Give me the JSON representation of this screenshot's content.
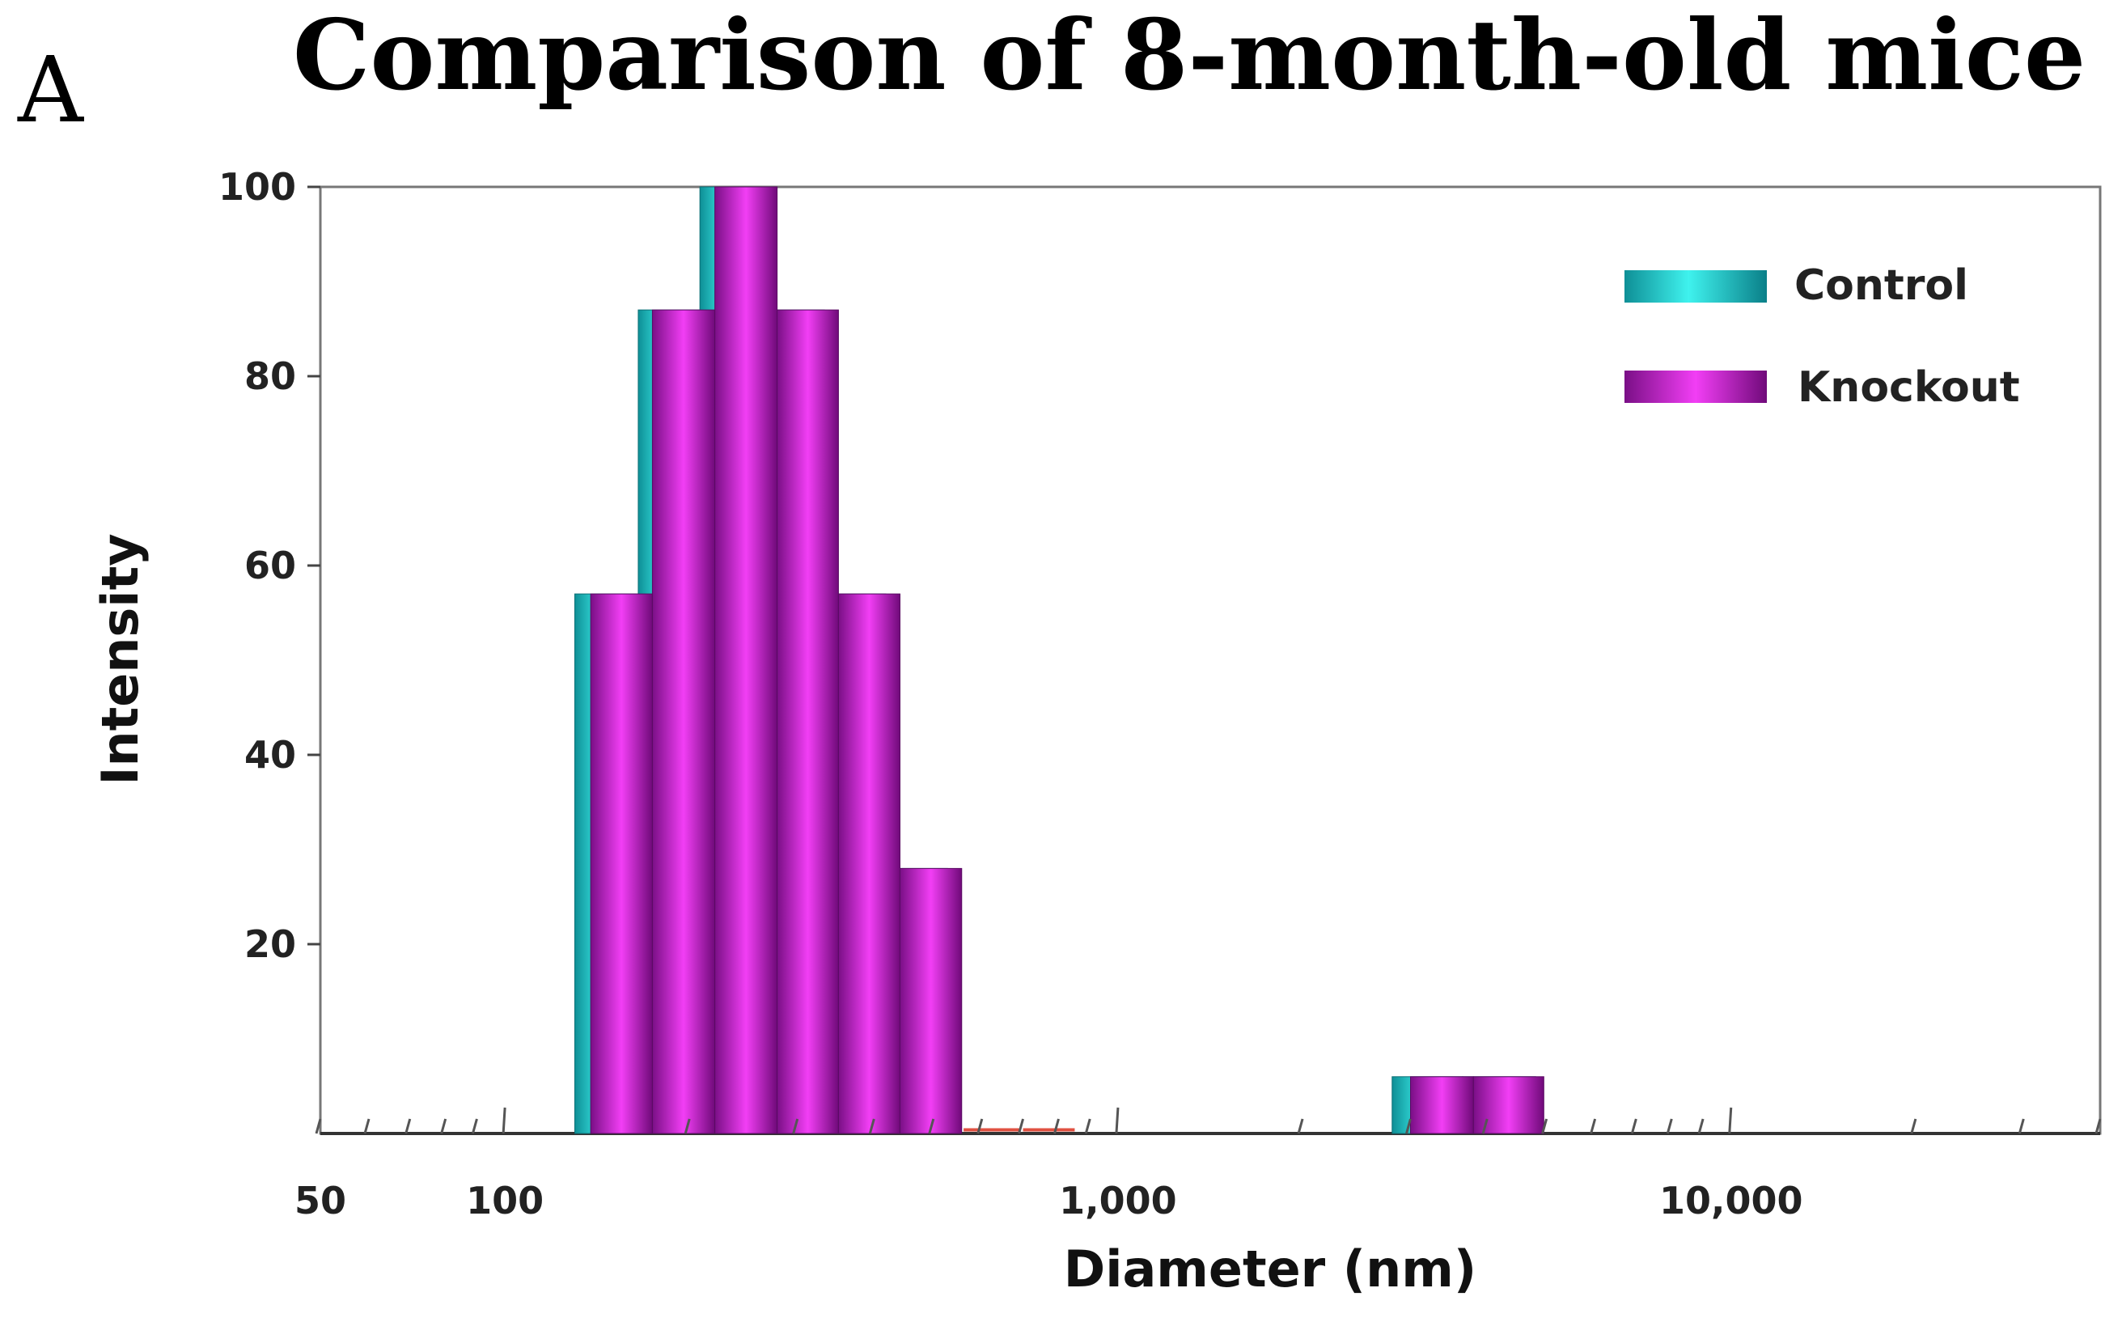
{
  "panel_letter": "A",
  "chart_data": {
    "type": "bar",
    "title": "Comparison of 8-month-old mice",
    "xlabel": "Diameter (nm)",
    "ylabel": "Intensity",
    "xscale": "log",
    "xlim": [
      50,
      40000
    ],
    "ylim": [
      0,
      100
    ],
    "x_tick_labels": [
      {
        "value": 50,
        "label": "50"
      },
      {
        "value": 100,
        "label": "100"
      },
      {
        "value": 1000,
        "label": "1,000"
      },
      {
        "value": 10000,
        "label": "10,000"
      }
    ],
    "y_ticks": [
      20,
      40,
      60,
      80,
      100
    ],
    "legend_position": "top-right",
    "series": [
      {
        "name": "Control",
        "color": "#1fc9c9",
        "bins": [
          {
            "from": 130,
            "to": 165,
            "value": 57
          },
          {
            "from": 165,
            "to": 208,
            "value": 87
          },
          {
            "from": 208,
            "to": 263,
            "value": 100
          },
          {
            "from": 263,
            "to": 332,
            "value": 87
          },
          {
            "from": 332,
            "to": 418,
            "value": 57
          },
          {
            "from": 418,
            "to": 527,
            "value": 28
          },
          {
            "from": 2800,
            "to": 3650,
            "value": 6
          },
          {
            "from": 3650,
            "to": 4800,
            "value": 6
          }
        ]
      },
      {
        "name": "Knockout",
        "color": "#cc22dd",
        "bins": [
          {
            "from": 138,
            "to": 174,
            "value": 57
          },
          {
            "from": 174,
            "to": 220,
            "value": 87
          },
          {
            "from": 220,
            "to": 278,
            "value": 100
          },
          {
            "from": 278,
            "to": 350,
            "value": 87
          },
          {
            "from": 350,
            "to": 441,
            "value": 57
          },
          {
            "from": 441,
            "to": 556,
            "value": 28
          },
          {
            "from": 3000,
            "to": 3800,
            "value": 6
          },
          {
            "from": 3800,
            "to": 4950,
            "value": 6
          }
        ]
      }
    ],
    "minor_markers": [
      {
        "from": 560,
        "to": 690,
        "value": 0.3
      },
      {
        "from": 700,
        "to": 850,
        "value": 0.3
      }
    ],
    "marker_color": "#e05040"
  }
}
